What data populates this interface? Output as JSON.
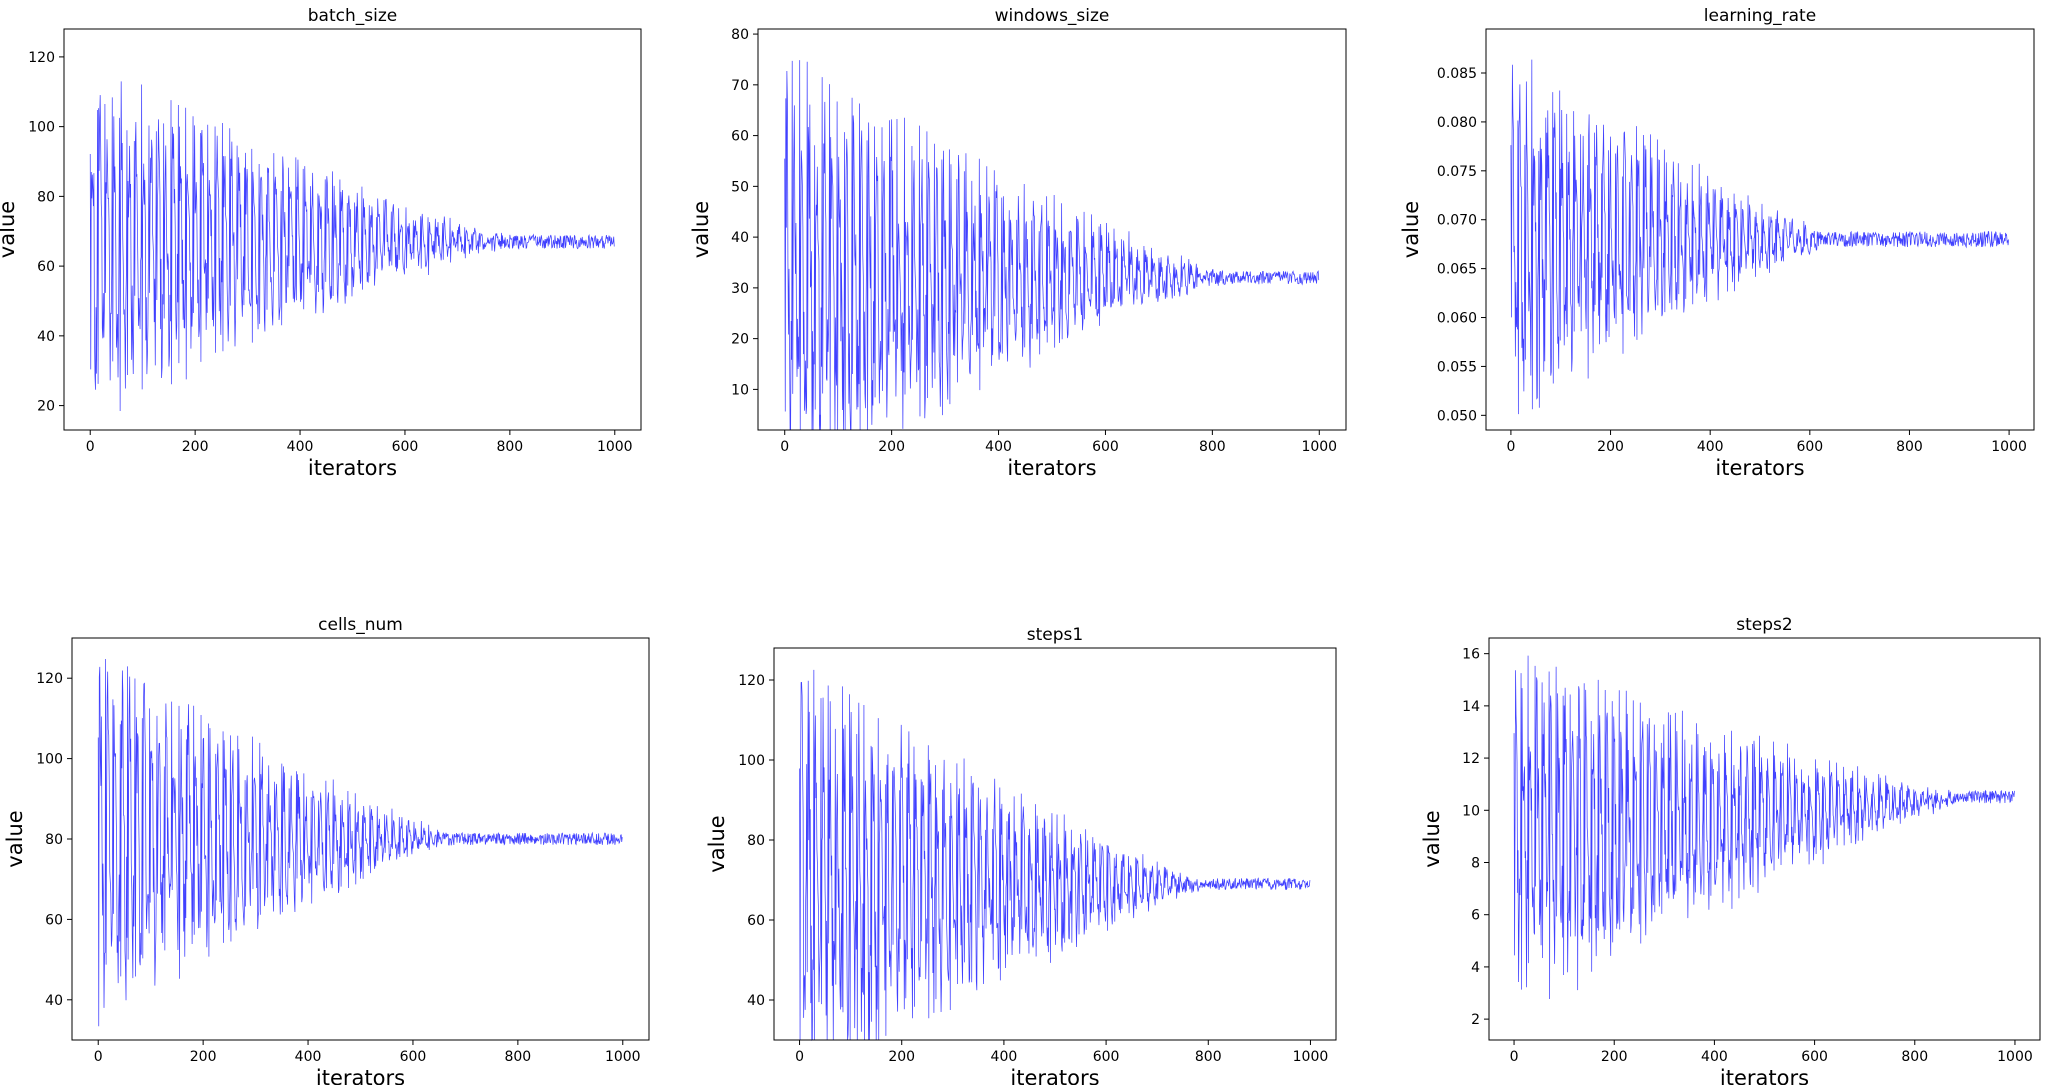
{
  "chart_data": [
    {
      "type": "line",
      "title": "batch_size",
      "xlabel": "iterators",
      "ylabel": "value",
      "series_name": "batch_size",
      "line_color": "#0000ff",
      "xlim": [
        -50,
        1050
      ],
      "ylim": [
        13,
        128
      ],
      "xticks": [
        0,
        200,
        400,
        600,
        800,
        1000
      ],
      "yticks": [
        20,
        40,
        60,
        80,
        100,
        120
      ],
      "center": 67,
      "amp_start": 51,
      "converge_x": 800,
      "noise": 2,
      "n_points": 1000
    },
    {
      "type": "line",
      "title": "windows_size",
      "xlabel": "iterators",
      "ylabel": "value",
      "series_name": "windows_size",
      "line_color": "#0000ff",
      "xlim": [
        -50,
        1050
      ],
      "ylim": [
        2,
        81
      ],
      "xticks": [
        0,
        200,
        400,
        600,
        800,
        1000
      ],
      "yticks": [
        10,
        20,
        30,
        40,
        50,
        60,
        70,
        80
      ],
      "center": 32,
      "amp_start": 44,
      "converge_x": 830,
      "noise": 1.3,
      "n_points": 1000
    },
    {
      "type": "line",
      "title": "learning_rate",
      "xlabel": "iterators",
      "ylabel": "value",
      "series_name": "learning_rate",
      "line_color": "#0000ff",
      "xlim": [
        -50,
        1050
      ],
      "ylim": [
        0.0485,
        0.0895
      ],
      "xticks": [
        0,
        200,
        400,
        600,
        800,
        1000
      ],
      "yticks": [
        0.05,
        0.055,
        0.06,
        0.065,
        0.07,
        0.075,
        0.08,
        0.085
      ],
      "center": 0.068,
      "amp_start": 0.019,
      "converge_x": 650,
      "noise": 0.0008,
      "n_points": 1000
    },
    {
      "type": "line",
      "title": "cells_num",
      "xlabel": "iterators",
      "ylabel": "value",
      "series_name": "cells_num",
      "line_color": "#0000ff",
      "xlim": [
        -50,
        1050
      ],
      "ylim": [
        30,
        130
      ],
      "xticks": [
        0,
        200,
        400,
        600,
        800,
        1000
      ],
      "yticks": [
        40,
        60,
        80,
        100,
        120
      ],
      "center": 80,
      "amp_start": 46,
      "converge_x": 680,
      "noise": 1.5,
      "n_points": 1000
    },
    {
      "type": "line",
      "title": "steps1",
      "xlabel": "iterators",
      "ylabel": "value",
      "series_name": "steps1",
      "line_color": "#0000ff",
      "xlim": [
        -50,
        1050
      ],
      "ylim": [
        30,
        128
      ],
      "xticks": [
        0,
        200,
        400,
        600,
        800,
        1000
      ],
      "yticks": [
        40,
        60,
        80,
        100,
        120
      ],
      "center": 69,
      "amp_start": 55,
      "converge_x": 800,
      "noise": 1.5,
      "n_points": 1000
    },
    {
      "type": "line",
      "title": "steps2",
      "xlabel": "iterators",
      "ylabel": "value",
      "series_name": "steps2",
      "line_color": "#0000ff",
      "xlim": [
        -50,
        1050
      ],
      "ylim": [
        1.2,
        16.6
      ],
      "xticks": [
        0,
        200,
        400,
        600,
        800,
        1000
      ],
      "yticks": [
        2,
        4,
        6,
        8,
        10,
        12,
        14,
        16
      ],
      "center": 10.5,
      "center_start": 9.0,
      "amp_start": 7.0,
      "converge_x": 900,
      "noise": 0.25,
      "n_points": 1000
    }
  ]
}
